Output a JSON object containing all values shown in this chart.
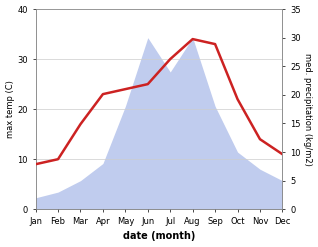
{
  "months": [
    "Jan",
    "Feb",
    "Mar",
    "Apr",
    "May",
    "Jun",
    "Jul",
    "Aug",
    "Sep",
    "Oct",
    "Nov",
    "Dec"
  ],
  "temp": [
    9,
    10,
    17,
    23,
    24,
    25,
    30,
    34,
    33,
    22,
    14,
    11
  ],
  "precip": [
    2,
    3,
    5,
    8,
    18,
    30,
    24,
    30,
    18,
    10,
    7,
    5
  ],
  "temp_color": "#cc2222",
  "precip_color": "#c0ccee",
  "left_ylim": [
    0,
    40
  ],
  "right_ylim": [
    0,
    35
  ],
  "left_yticks": [
    0,
    10,
    20,
    30,
    40
  ],
  "right_yticks": [
    0,
    5,
    10,
    15,
    20,
    25,
    30,
    35
  ],
  "xlabel": "date (month)",
  "ylabel_left": "max temp (C)",
  "ylabel_right": "med. precipitation (kg/m2)",
  "bg_color": "#ffffff",
  "grid_color": "#cccccc"
}
